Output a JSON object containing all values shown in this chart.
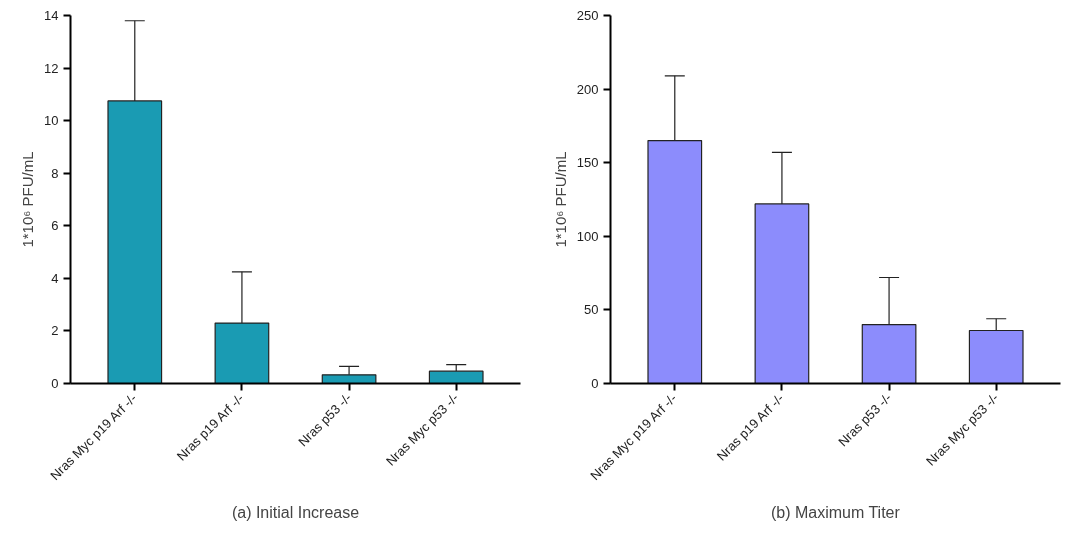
{
  "chart_data": [
    {
      "type": "bar",
      "title": "(a) Initial Increase",
      "ylabel": "1*10⁶ PFU/mL",
      "categories": [
        "Nras Myc p19 Arf -/-",
        "Nras p19 Arf -/-",
        "Nras p53 -/-",
        "Nras Myc p53 -/-"
      ],
      "values": [
        10.75,
        2.3,
        0.33,
        0.47
      ],
      "errors": [
        [
          10.75,
          13.8
        ],
        [
          2.3,
          4.25
        ],
        [
          0.33,
          0.65
        ],
        [
          0.47,
          0.72
        ]
      ],
      "color": "#1a9bb3",
      "ylim": [
        0,
        14
      ],
      "yticks": [
        0,
        2,
        4,
        6,
        8,
        10,
        12,
        14
      ],
      "grid": false
    },
    {
      "type": "bar",
      "title": "(b) Maximum Titer",
      "ylabel": "1*10⁶ PFU/mL",
      "categories": [
        "Nras Myc p19 Arf -/-",
        "Nras p19 Arf -/-",
        "Nras p53 -/-",
        "Nras Myc p53 -/-"
      ],
      "values": [
        165,
        122,
        40,
        36
      ],
      "errors": [
        [
          165,
          209
        ],
        [
          122,
          157
        ],
        [
          40,
          72
        ],
        [
          36,
          44
        ]
      ],
      "color": "#8c8cfc",
      "ylim": [
        0,
        250
      ],
      "yticks": [
        0,
        50,
        100,
        150,
        200,
        250
      ],
      "grid": false
    }
  ]
}
